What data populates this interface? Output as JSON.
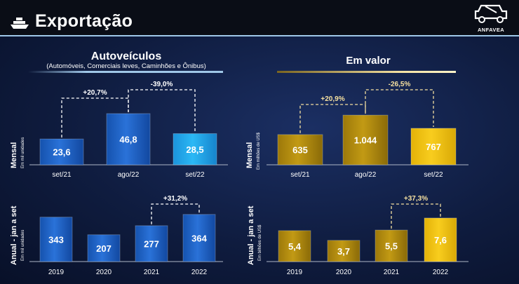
{
  "header": {
    "title": "Exportação",
    "logo_text": "ANFAVEA"
  },
  "left_section": {
    "title": "Autoveículos",
    "subtitle": "(Automóveis, Comerciais leves, Caminhões e Ônibus)"
  },
  "right_section": {
    "title": "Em valor"
  },
  "colors": {
    "blue": "#1d64c8",
    "blue_light": "#23a9ee",
    "gold": "#b8900f",
    "gold_light": "#f2c20c",
    "connector_blue": "#ffffff",
    "connector_gold": "#f5e0a0"
  },
  "chart_data": [
    {
      "id": "units_monthly",
      "type": "bar",
      "row_label": "Mensal",
      "unit": "Em mil unidades",
      "categories": [
        "set/21",
        "ago/22",
        "set/22"
      ],
      "values": [
        23.6,
        46.8,
        28.5
      ],
      "value_labels": [
        "23,6",
        "46,8",
        "28,5"
      ],
      "ylim": [
        0,
        50
      ],
      "comparisons": [
        {
          "from": 0,
          "to": 1,
          "label": "+20,7%"
        },
        {
          "from": 1,
          "to": 2,
          "label": "-39,0%"
        }
      ]
    },
    {
      "id": "value_monthly",
      "type": "bar",
      "row_label": "Mensal",
      "unit": "Em milhões de US$",
      "categories": [
        "set/21",
        "ago/22",
        "set/22"
      ],
      "values": [
        635,
        1044,
        767
      ],
      "value_labels": [
        "635",
        "1.044",
        "767"
      ],
      "ylim": [
        0,
        1120
      ],
      "comparisons": [
        {
          "from": 0,
          "to": 1,
          "label": "+20,9%"
        },
        {
          "from": 1,
          "to": 2,
          "label": "-26,5%"
        }
      ]
    },
    {
      "id": "units_annual",
      "type": "bar",
      "row_label": "Anual - jan a set",
      "unit": "Em mil unidades",
      "categories": [
        "2019",
        "2020",
        "2021",
        "2022"
      ],
      "values": [
        343,
        207,
        277,
        364
      ],
      "value_labels": [
        "343",
        "207",
        "277",
        "364"
      ],
      "ylim": [
        0,
        390
      ],
      "comparisons": [
        {
          "from": 2,
          "to": 3,
          "label": "+31,2%"
        }
      ]
    },
    {
      "id": "value_annual",
      "type": "bar",
      "row_label": "Anual - jan a set",
      "unit": "Em bilhões de US$",
      "categories": [
        "2019",
        "2020",
        "2021",
        "2022"
      ],
      "values": [
        5.4,
        3.7,
        5.5,
        7.6
      ],
      "value_labels": [
        "5,4",
        "3,7",
        "5,5",
        "7,6"
      ],
      "ylim": [
        0,
        8.2
      ],
      "comparisons": [
        {
          "from": 2,
          "to": 3,
          "label": "+37,3%"
        }
      ]
    }
  ]
}
